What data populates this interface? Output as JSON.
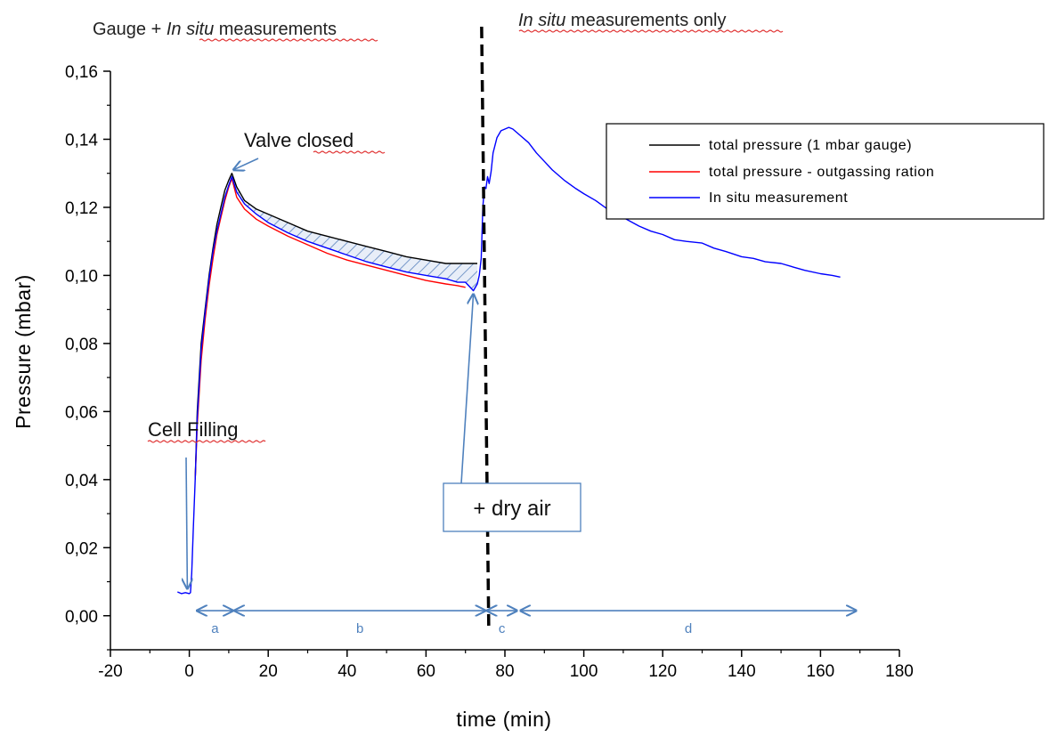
{
  "chart_data": {
    "type": "line",
    "header_left_prefix": "Gauge + ",
    "header_left_italic": "In situ",
    "header_left_suffix": " measurements",
    "header_right_italic": "In situ",
    "header_right_suffix": " measurements only",
    "xlabel": "time (min)",
    "ylabel": "Pressure (mbar)",
    "xlim": [
      -20,
      180
    ],
    "ylim": [
      -0.01,
      0.16
    ],
    "x_ticks": [
      -20,
      0,
      20,
      40,
      60,
      80,
      100,
      120,
      140,
      160,
      180
    ],
    "x_tick_labels": [
      "-20",
      "0",
      "20",
      "40",
      "60",
      "80",
      "100",
      "120",
      "140",
      "160",
      "180"
    ],
    "y_ticks": [
      0.0,
      0.02,
      0.04,
      0.06,
      0.08,
      0.1,
      0.12,
      0.14,
      0.16
    ],
    "y_tick_labels": [
      "0,00",
      "0,02",
      "0,04",
      "0,06",
      "0,08",
      "0,10",
      "0,12",
      "0,14",
      "0,16"
    ],
    "grid": false,
    "legend_position": "top-right",
    "series": [
      {
        "name": "total pressure (1 mbar gauge)",
        "color": "#000000",
        "points": [
          [
            1.5,
            0.04
          ],
          [
            2,
            0.06
          ],
          [
            3,
            0.08
          ],
          [
            4,
            0.09
          ],
          [
            5,
            0.1
          ],
          [
            6,
            0.108
          ],
          [
            7,
            0.115
          ],
          [
            8,
            0.12
          ],
          [
            9,
            0.125
          ],
          [
            10,
            0.128
          ],
          [
            10.8,
            0.13
          ],
          [
            12,
            0.126
          ],
          [
            14,
            0.122
          ],
          [
            17,
            0.1195
          ],
          [
            20,
            0.118
          ],
          [
            25,
            0.1155
          ],
          [
            30,
            0.113
          ],
          [
            35,
            0.1115
          ],
          [
            40,
            0.11
          ],
          [
            45,
            0.1085
          ],
          [
            50,
            0.107
          ],
          [
            55,
            0.1055
          ],
          [
            60,
            0.1045
          ],
          [
            65,
            0.1035
          ],
          [
            68,
            0.1035
          ],
          [
            72,
            0.1035
          ],
          [
            73,
            0.1035
          ]
        ]
      },
      {
        "name": "total pressure - outgassing ration",
        "color": "#ff0000",
        "points": [
          [
            1.5,
            0.04
          ],
          [
            2,
            0.056
          ],
          [
            3,
            0.075
          ],
          [
            4,
            0.087
          ],
          [
            5,
            0.097
          ],
          [
            6,
            0.105
          ],
          [
            7,
            0.112
          ],
          [
            8,
            0.117
          ],
          [
            9,
            0.122
          ],
          [
            10,
            0.126
          ],
          [
            10.8,
            0.1285
          ],
          [
            12,
            0.123
          ],
          [
            14,
            0.1195
          ],
          [
            17,
            0.1165
          ],
          [
            20,
            0.1145
          ],
          [
            25,
            0.1115
          ],
          [
            30,
            0.109
          ],
          [
            35,
            0.1065
          ],
          [
            40,
            0.1045
          ],
          [
            45,
            0.103
          ],
          [
            50,
            0.1015
          ],
          [
            55,
            0.1
          ],
          [
            60,
            0.0985
          ],
          [
            65,
            0.0975
          ],
          [
            68,
            0.097
          ],
          [
            70,
            0.0965
          ]
        ]
      },
      {
        "name": "In situ measurement",
        "color": "#0000ff",
        "points": [
          [
            -3,
            0.007
          ],
          [
            -2,
            0.0065
          ],
          [
            -1,
            0.0068
          ],
          [
            0,
            0.0065
          ],
          [
            0.3,
            0.0068
          ],
          [
            0.6,
            0.0125
          ],
          [
            1,
            0.025
          ],
          [
            1.5,
            0.04
          ],
          [
            2,
            0.058
          ],
          [
            3,
            0.078
          ],
          [
            4,
            0.089
          ],
          [
            5,
            0.099
          ],
          [
            6,
            0.107
          ],
          [
            7,
            0.113
          ],
          [
            8,
            0.118
          ],
          [
            9,
            0.123
          ],
          [
            10,
            0.1265
          ],
          [
            10.8,
            0.129
          ],
          [
            12,
            0.1245
          ],
          [
            14,
            0.121
          ],
          [
            17,
            0.118
          ],
          [
            20,
            0.1155
          ],
          [
            25,
            0.1125
          ],
          [
            30,
            0.11
          ],
          [
            35,
            0.108
          ],
          [
            40,
            0.106
          ],
          [
            45,
            0.104
          ],
          [
            50,
            0.1025
          ],
          [
            55,
            0.101
          ],
          [
            60,
            0.1
          ],
          [
            65,
            0.099
          ],
          [
            68,
            0.098
          ],
          [
            70,
            0.098
          ],
          [
            72,
            0.0955
          ],
          [
            73,
            0.0975
          ],
          [
            73.5,
            0.1
          ],
          [
            74,
            0.105
          ],
          [
            74.4,
            0.12
          ],
          [
            74.8,
            0.126
          ],
          [
            75.2,
            0.1255
          ],
          [
            75.6,
            0.129
          ],
          [
            76,
            0.127
          ],
          [
            76.5,
            0.1305
          ],
          [
            77,
            0.136
          ],
          [
            78,
            0.1405
          ],
          [
            79,
            0.1425
          ],
          [
            80,
            0.143
          ],
          [
            81,
            0.1435
          ],
          [
            82,
            0.143
          ],
          [
            84,
            0.141
          ],
          [
            86,
            0.139
          ],
          [
            88,
            0.136
          ],
          [
            90,
            0.1335
          ],
          [
            92,
            0.131
          ],
          [
            95,
            0.128
          ],
          [
            98,
            0.1255
          ],
          [
            100,
            0.124
          ],
          [
            103,
            0.122
          ],
          [
            106,
            0.1195
          ],
          [
            110,
            0.117
          ],
          [
            114,
            0.1145
          ],
          [
            117,
            0.113
          ],
          [
            120,
            0.112
          ],
          [
            123,
            0.1105
          ],
          [
            126,
            0.11
          ],
          [
            130,
            0.1095
          ],
          [
            133,
            0.108
          ],
          [
            136,
            0.107
          ],
          [
            140,
            0.1055
          ],
          [
            143,
            0.105
          ],
          [
            146,
            0.104
          ],
          [
            150,
            0.1035
          ],
          [
            153,
            0.1025
          ],
          [
            156,
            0.1015
          ],
          [
            160,
            0.1005
          ],
          [
            163,
            0.1
          ],
          [
            165,
            0.0995
          ]
        ]
      }
    ],
    "annotations": {
      "cell_filling": "Cell Filling",
      "valve_closed": "Valve closed",
      "dry_air": "+ dry air",
      "phase_labels": [
        "a",
        "b",
        "c",
        "d"
      ],
      "phase_ranges": [
        [
          2,
          11
        ],
        [
          11.5,
          75
        ],
        [
          75.5,
          83
        ],
        [
          84,
          169
        ]
      ],
      "phase_arrow_y": 0.0015,
      "divider_x": 75
    },
    "colors": {
      "annotation_blue": "#4f81bd",
      "hatch": "#6a8fc4",
      "divider": "#000000"
    }
  }
}
